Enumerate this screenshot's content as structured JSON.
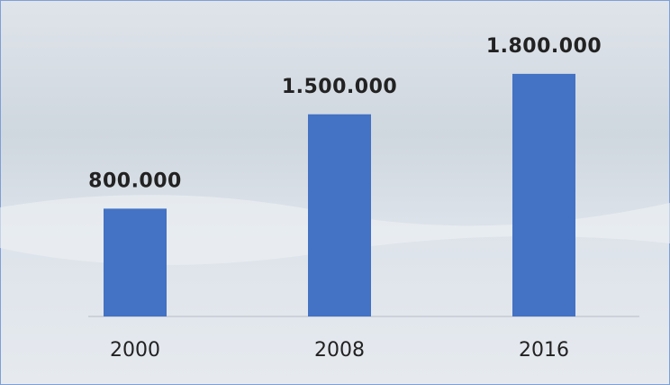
{
  "chart_data": {
    "type": "bar",
    "categories": [
      "2000",
      "2008",
      "2016"
    ],
    "values": [
      800000,
      1500000,
      1800000
    ],
    "value_labels": [
      "800.000",
      "1.500.000",
      "1.800.000"
    ],
    "color": "#4472c4",
    "ylim": [
      0,
      2000000
    ]
  }
}
